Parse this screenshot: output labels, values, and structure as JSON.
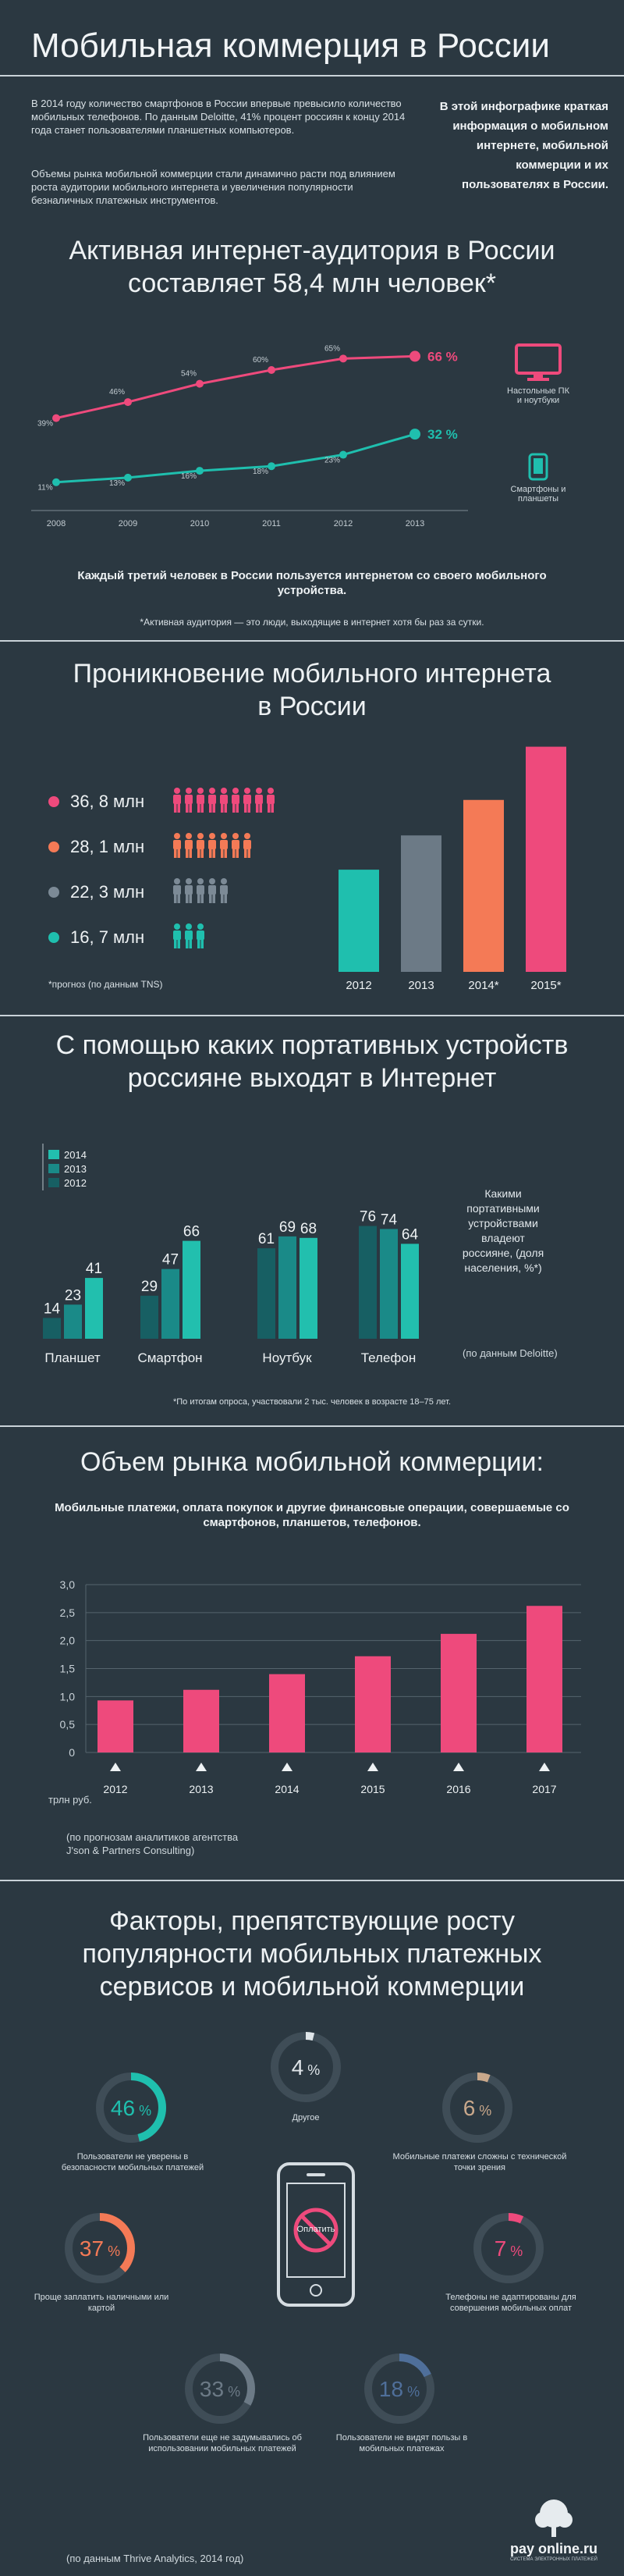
{
  "header": {
    "title": "Мобильная коммерция в России",
    "intro_p1": "В 2014 году количество смартфонов в России впервые превысило количество мобильных телефонов. По данным Deloitte, 41% процент россиян к концу 2014 года станет пользователями планшетных компьютеров.",
    "intro_p2": "Объемы рынка мобильной коммерции стали динамично расти под влиянием роста аудитории мобильного интернета и увеличения популярности безналичных платежных инструментов.",
    "side_text": "В этой инфографике краткая информация о мобильном интернете, мобильной коммерции и их пользователях в России."
  },
  "audience": {
    "title_l1": "Активная интернет-аудитория в России",
    "title_l2": "составляет 58,4 млн человек*",
    "legend_pc": "Настольные ПК и ноутбуки",
    "legend_mobile": "Смартфоны и планшеты",
    "caption": "Каждый третий человек в России пользуется интернетом со своего мобильного устройства.",
    "footnote": "*Активная аудитория — это люди, выходящие в интернет хотя бы раз за сутки."
  },
  "penetration": {
    "title_l1": "Проникновение мобильного интернета",
    "title_l2": "в России",
    "rows": [
      {
        "value": "36, 8 млн",
        "color": "#ee4a7c"
      },
      {
        "value": "28, 1 млн",
        "color": "#f47a56"
      },
      {
        "value": "22, 3 млн",
        "color": "#7c8a96"
      },
      {
        "value": "16, 7 млн",
        "color": "#1fbfae"
      }
    ],
    "footnote": "*прогноз (по данным TNS)"
  },
  "devices": {
    "title_l1": "С помощью каких портативных устройств",
    "title_l2": "россияне выходят в Интернет",
    "side_text": "Какими портативными устройствами владеют россияне, (доля населения, %*)",
    "source": "(по данным Deloitte)",
    "footnote": "*По итогам опроса, участвовали 2 тыс. человек в возрасте 18–75 лет."
  },
  "market": {
    "title": "Объем рынка мобильной коммерции:",
    "subtitle": "Мобильные платежи, оплата покупок и другие финансовые операции, совершаемые со смартфонов, планшетов, телефонов.",
    "ylabel": "трлн руб.",
    "source": "(по прогнозам аналитиков агентства J'son & Partners Consulting)"
  },
  "factors": {
    "title_l1": "Факторы, препятствующие росту",
    "title_l2": "популярности мобильных платежных",
    "title_l3": "сервисов и мобильной коммерции",
    "phone_label": "Оплатить",
    "items": [
      {
        "pct": "46",
        "label": "Пользователи не уверены в безопасности мобильных платежей",
        "color": "#1fbfae",
        "frac": 0.46
      },
      {
        "pct": "4",
        "label": "Другое",
        "color": "#dfe5e9",
        "frac": 0.04
      },
      {
        "pct": "6",
        "label": "Мобильные платежи сложны с технической точки зрения",
        "color": "#c9a88b",
        "frac": 0.06
      },
      {
        "pct": "37",
        "label": "Проще заплатить наличными или картой",
        "color": "#f47a56",
        "frac": 0.37
      },
      {
        "pct": "7",
        "label": "Телефоны не адаптированы для совершения мобильных оплат",
        "color": "#ee4a7c",
        "frac": 0.07
      },
      {
        "pct": "33",
        "label": "Пользователи еще не задумывались об использовании мобильных платежей",
        "color": "#6c7a86",
        "frac": 0.33
      },
      {
        "pct": "18",
        "label": "Пользователи не видят пользы в мобильных платежах",
        "color": "#4f6f9a",
        "frac": 0.18
      }
    ],
    "pct_sign": "%",
    "source": "(по данным Thrive Analytics, 2014 год)"
  },
  "logo": {
    "text": "pay online.ru",
    "tagline": "СИСТЕМА ЭЛЕКТРОННЫХ ПЛАТЕЖЕЙ"
  },
  "chart_data": [
    {
      "type": "line",
      "x": [
        "2008",
        "2009",
        "2010",
        "2011",
        "2012",
        "2013"
      ],
      "series": [
        {
          "name": "Настольные ПК и ноутбуки",
          "values": [
            39,
            46,
            54,
            60,
            65,
            66
          ],
          "labels": [
            "39%",
            "46%",
            "54%",
            "60%",
            "65%",
            "66 %"
          ],
          "color": "#ee4a7c"
        },
        {
          "name": "Смартфоны и планшеты",
          "values": [
            11,
            13,
            16,
            18,
            23,
            32
          ],
          "labels": [
            "11%",
            "13%",
            "16%",
            "18%",
            "23%",
            "32 %"
          ],
          "color": "#1fbfae"
        }
      ]
    },
    {
      "type": "bar",
      "categories": [
        "2012",
        "2013",
        "2014*",
        "2015*"
      ],
      "values": [
        16.7,
        22.3,
        28.1,
        36.8
      ],
      "colors": [
        "#1fbfae",
        "#6c7a86",
        "#f47a56",
        "#ee4a7c"
      ]
    },
    {
      "type": "bar",
      "categories": [
        "Планшет",
        "Смартфон",
        "Ноутбук",
        "Телефон"
      ],
      "series": [
        {
          "name": "2012",
          "values": [
            14,
            29,
            61,
            76
          ],
          "color": "#175f63"
        },
        {
          "name": "2013",
          "values": [
            23,
            47,
            69,
            74
          ],
          "color": "#1a8a88"
        },
        {
          "name": "2014",
          "values": [
            41,
            66,
            68,
            64
          ],
          "color": "#22bfae"
        }
      ],
      "legend_order": [
        "2014",
        "2013",
        "2012"
      ]
    },
    {
      "type": "bar",
      "categories": [
        "2012",
        "2013",
        "2014",
        "2015",
        "2016",
        "2017"
      ],
      "values": [
        0.93,
        1.12,
        1.4,
        1.72,
        2.12,
        2.62
      ],
      "yticks": [
        "0",
        "0,5",
        "1,0",
        "1,5",
        "2,0",
        "2,5",
        "3,0"
      ],
      "ylim": [
        0,
        3
      ],
      "color": "#ee4a7c"
    }
  ]
}
